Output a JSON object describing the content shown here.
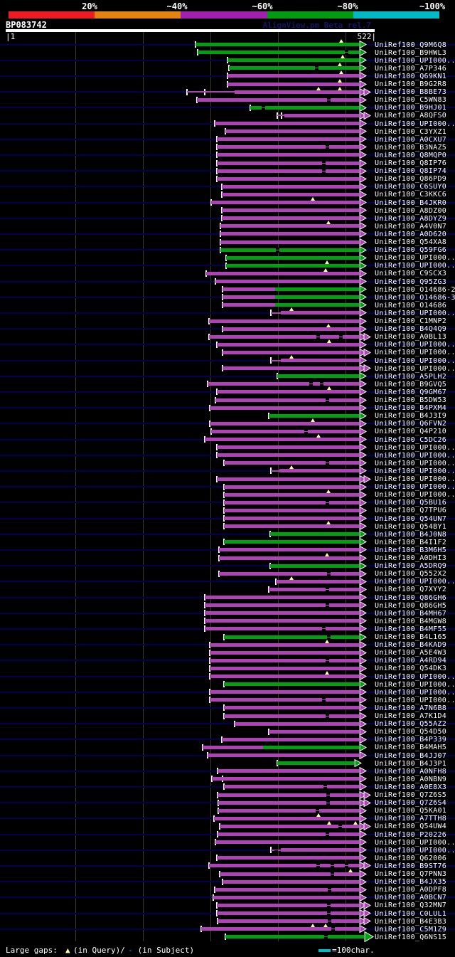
{
  "scale": {
    "labels": [
      "20%",
      "~40%",
      "~60%",
      "~80%",
      "~100%"
    ],
    "colors": [
      "#ed1b24",
      "#e5830f",
      "#a31fae",
      "#009d10",
      "#00bac6"
    ]
  },
  "header": {
    "title": "BP083742",
    "watermark": "AlignView.pm Beta rel.7"
  },
  "ruler": {
    "left_text": "|1",
    "right_text": "522|"
  },
  "footer": {
    "gaps_label": "Large gaps: ",
    "triangle": "▲",
    "gap_query": "(in Query)/",
    "dash": "-",
    "gap_subject": " (in Subject)",
    "scale_note": "=100char."
  },
  "chart_data": {
    "type": "alignment-overview",
    "query": "BP083742",
    "query_length": 522,
    "identity_bins": [
      "20%",
      "~40%",
      "~60%",
      "~80%",
      "~100%"
    ],
    "bar_colors": {
      "m": "#b042b8",
      "g": "#00a010"
    },
    "rows": [
      {
        "l": "UniRef100_Q9M6Q8",
        "c": "g",
        "s": 275,
        "t": [
          480
        ]
      },
      {
        "l": "UniRef100_B9HWL3",
        "c": "g",
        "s": 278,
        "d": [
          487
        ]
      },
      {
        "l": "UniRef100_UPI000..",
        "c": "g",
        "s": 320,
        "t": [
          482
        ]
      },
      {
        "l": "UniRef100_A7P346",
        "c": "g",
        "s": 322,
        "t": [
          478
        ],
        "d": [
          445
        ]
      },
      {
        "l": "UniRef100_Q69KN1",
        "c": "m",
        "s": 320,
        "t": [
          480
        ]
      },
      {
        "l": "UniRef100_B9G2R8",
        "c": "m",
        "s": 320,
        "t": [
          478
        ]
      },
      {
        "l": "UniRef100_B8BE73",
        "c": "m",
        "s": 263,
        "thin": 330,
        "t": [
          448,
          478
        ],
        "dbl": true,
        "cap2": 287
      },
      {
        "l": "UniRef100_C5WN83",
        "c": "m",
        "s": 277,
        "d": [
          462
        ]
      },
      {
        "l": "UniRef100_B9HJ01",
        "c": "g",
        "s": 352,
        "d": [
          370
        ]
      },
      {
        "l": "UniRef100_A8QFS0",
        "c": "m",
        "s": 390,
        "thin": 400,
        "dbl": true,
        "cap2": 395
      },
      {
        "l": "UniRef100_UPI000..",
        "c": "m",
        "s": 302
      },
      {
        "l": "UniRef100_C3YXZ1",
        "c": "m",
        "s": 317
      },
      {
        "l": "UniRef100_A0CXU7",
        "c": "m",
        "s": 305
      },
      {
        "l": "UniRef100_B3NAZ5",
        "c": "m",
        "s": 305,
        "d": [
          460
        ]
      },
      {
        "l": "UniRef100_Q8MQP0",
        "c": "m",
        "s": 305
      },
      {
        "l": "UniRef100_Q8IP76",
        "c": "m",
        "s": 305,
        "d": [
          455
        ]
      },
      {
        "l": "UniRef100_Q8IP74",
        "c": "m",
        "s": 305,
        "d": [
          455
        ]
      },
      {
        "l": "UniRef100_Q86PD9",
        "c": "m",
        "s": 305
      },
      {
        "l": "UniRef100_C6SUY0",
        "c": "m",
        "s": 312
      },
      {
        "l": "UniRef100_C3KKC6",
        "c": "m",
        "s": 312
      },
      {
        "l": "UniRef100_B4JKR0",
        "c": "m",
        "s": 297,
        "t": [
          440
        ]
      },
      {
        "l": "UniRef100_A8DZ00",
        "c": "m",
        "s": 312
      },
      {
        "l": "UniRef100_A8DYZ9",
        "c": "m",
        "s": 312
      },
      {
        "l": "UniRef100_A4V0N7",
        "c": "m",
        "s": 310,
        "t": [
          462
        ]
      },
      {
        "l": "UniRef100_A0D620",
        "c": "m",
        "s": 310
      },
      {
        "l": "UniRef100_Q54XA8",
        "c": "m",
        "s": 310
      },
      {
        "l": "UniRef100_Q59FG6",
        "c": "g",
        "s": 310,
        "d": [
          390
        ]
      },
      {
        "l": "UniRef100_UPI000..",
        "c": "g",
        "s": 318
      },
      {
        "l": "UniRef100_UPI000..",
        "c": "g",
        "s": 318,
        "t": [
          460
        ]
      },
      {
        "l": "UniRef100_C9SCX3",
        "c": "m",
        "s": 290,
        "t": [
          458
        ]
      },
      {
        "l": "UniRef100_Q95ZG3",
        "c": "m",
        "s": 303
      },
      {
        "l": "UniRef100_O14686-2",
        "c": "m",
        "s": 313,
        "g2": 387
      },
      {
        "l": "UniRef100_O14686-3",
        "c": "m",
        "s": 313,
        "g2": 387
      },
      {
        "l": "UniRef100_O14686",
        "c": "m",
        "s": 313,
        "g2": 387
      },
      {
        "l": "UniRef100_UPI000..",
        "c": "m",
        "s": 381,
        "thin": 395,
        "t": [
          410
        ]
      },
      {
        "l": "UniRef100_C1MNP2",
        "c": "m",
        "s": 294
      },
      {
        "l": "UniRef100_B4Q4Q9",
        "c": "m",
        "s": 313,
        "t": [
          462
        ]
      },
      {
        "l": "UniRef100_A0BL13",
        "c": "m",
        "s": 294,
        "d": [
          447,
          479
        ],
        "dbl": true
      },
      {
        "l": "UniRef100_UPI000..",
        "c": "m",
        "s": 305,
        "t": [
          463
        ]
      },
      {
        "l": "UniRef100_UPI000..",
        "c": "m",
        "s": 313,
        "dbl": true
      },
      {
        "l": "UniRef100_UPI000..",
        "c": "m",
        "s": 381,
        "thin": 395,
        "t": [
          410
        ]
      },
      {
        "l": "UniRef100_UPI000..",
        "c": "m",
        "s": 313,
        "dbl": true
      },
      {
        "l": "UniRef100_A5PLH2",
        "c": "g",
        "s": 390
      },
      {
        "l": "UniRef100_B9GVQ5",
        "c": "m",
        "s": 292,
        "d": [
          437,
          452
        ]
      },
      {
        "l": "UniRef100_Q9GM67",
        "c": "m",
        "s": 305,
        "t": [
          463
        ]
      },
      {
        "l": "UniRef100_B5DW53",
        "c": "m",
        "s": 303,
        "d": [
          460
        ]
      },
      {
        "l": "UniRef100_B4PXM4",
        "c": "m",
        "s": 295
      },
      {
        "l": "UniRef100_B4J3I9",
        "c": "g",
        "s": 378
      },
      {
        "l": "UniRef100_Q6FVN2",
        "c": "m",
        "s": 295,
        "t": [
          440
        ]
      },
      {
        "l": "UniRef100_Q4P210",
        "c": "m",
        "s": 297,
        "d": [
          430
        ]
      },
      {
        "l": "UniRef100_C5DC26",
        "c": "m",
        "s": 288,
        "t": [
          448
        ]
      },
      {
        "l": "UniRef100_UPI000..",
        "c": "m",
        "s": 305
      },
      {
        "l": "UniRef100_UPI000..",
        "c": "m",
        "s": 305
      },
      {
        "l": "UniRef100_UPI000..",
        "c": "m",
        "s": 315,
        "d": [
          460
        ]
      },
      {
        "l": "UniRef100_UPI000..",
        "c": "m",
        "s": 381,
        "thin": 393,
        "t": [
          410
        ]
      },
      {
        "l": "UniRef100_UPI000..",
        "c": "m",
        "s": 305,
        "dbl": true
      },
      {
        "l": "UniRef100_UPI000..",
        "c": "m",
        "s": 315
      },
      {
        "l": "UniRef100_UPI000..",
        "c": "m",
        "s": 315,
        "t": [
          462
        ]
      },
      {
        "l": "UniRef100_Q5BU16",
        "c": "m",
        "s": 315,
        "d": [
          460
        ]
      },
      {
        "l": "UniRef100_Q7TPU6",
        "c": "m",
        "s": 315
      },
      {
        "l": "UniRef100_Q54UN7",
        "c": "m",
        "s": 315
      },
      {
        "l": "UniRef100_Q54BY1",
        "c": "m",
        "s": 315,
        "t": [
          462
        ]
      },
      {
        "l": "UniRef100_B4J0N8",
        "c": "g",
        "s": 380
      },
      {
        "l": "UniRef100_B4I1F2",
        "c": "g",
        "s": 315
      },
      {
        "l": "UniRef100_B3M6H5",
        "c": "m",
        "s": 308
      },
      {
        "l": "UniRef100_A0DHI3",
        "c": "m",
        "s": 308,
        "t": [
          460
        ]
      },
      {
        "l": "UniRef100_A5DRQ9",
        "c": "g",
        "s": 380
      },
      {
        "l": "UniRef100_Q552X2",
        "c": "m",
        "s": 308,
        "d": [
          462
        ]
      },
      {
        "l": "UniRef100_UPI000..",
        "c": "m",
        "s": 388,
        "t": [
          410
        ]
      },
      {
        "l": "UniRef100_Q7XYY2",
        "c": "m",
        "s": 378,
        "d": [
          460
        ]
      },
      {
        "l": "UniRef100_Q86GH6",
        "c": "m",
        "s": 288
      },
      {
        "l": "UniRef100_Q86GH5",
        "c": "m",
        "s": 288,
        "d": [
          460
        ]
      },
      {
        "l": "UniRef100_B4MH67",
        "c": "m",
        "s": 288
      },
      {
        "l": "UniRef100_B4MGW8",
        "c": "m",
        "s": 288
      },
      {
        "l": "UniRef100_B4MF55",
        "c": "m",
        "s": 288,
        "d": [
          455
        ]
      },
      {
        "l": "UniRef100_B4L165",
        "c": "g",
        "s": 315,
        "d": [
          462
        ]
      },
      {
        "l": "UniRef100_B4KAD9",
        "c": "m",
        "s": 295,
        "t": [
          460
        ]
      },
      {
        "l": "UniRef100_A5E4W3",
        "c": "m",
        "s": 295
      },
      {
        "l": "UniRef100_A4RD94",
        "c": "m",
        "s": 295,
        "d": [
          460
        ]
      },
      {
        "l": "UniRef100_Q54DK3",
        "c": "m",
        "s": 295
      },
      {
        "l": "UniRef100_UPI000..",
        "c": "m",
        "s": 295,
        "t": [
          460
        ]
      },
      {
        "l": "UniRef100_UPI000..",
        "c": "g",
        "s": 315
      },
      {
        "l": "UniRef100_UPI000..",
        "c": "m",
        "s": 295
      },
      {
        "l": "UniRef100_UPI000..",
        "c": "m",
        "s": 295,
        "d": [
          455
        ]
      },
      {
        "l": "UniRef100_A7N6B8",
        "c": "m",
        "s": 315
      },
      {
        "l": "UniRef100_A7K1D4",
        "c": "m",
        "s": 315,
        "d": [
          460
        ]
      },
      {
        "l": "UniRef100_Q55AZ2",
        "c": "m",
        "s": 330
      },
      {
        "l": "UniRef100_Q54D50",
        "c": "m",
        "s": 378
      },
      {
        "l": "UniRef100_B4P339",
        "c": "m",
        "s": 312
      },
      {
        "l": "UniRef100_B4MAH5",
        "c": "m",
        "s": 285,
        "g2": 370
      },
      {
        "l": "UniRef100_B4JJ07",
        "c": "m",
        "s": 292
      },
      {
        "l": "UniRef100_B4J3P1",
        "c": "g",
        "s": 390,
        "e": 498
      },
      {
        "l": "UniRef100_A0NFH8",
        "c": "m",
        "s": 306
      },
      {
        "l": "UniRef100_A0NBN9",
        "c": "m",
        "s": 298,
        "cap2": 312
      },
      {
        "l": "UniRef100_A0E8X3",
        "c": "m",
        "s": 315,
        "d": [
          457
        ]
      },
      {
        "l": "UniRef100_Q7Z6S5",
        "c": "m",
        "s": 306,
        "d": [
          461
        ],
        "dbl": true
      },
      {
        "l": "UniRef100_Q7Z6S4",
        "c": "m",
        "s": 307,
        "d": [
          461
        ],
        "dbl": true
      },
      {
        "l": "UniRef100_Q5KA01",
        "c": "m",
        "s": 307,
        "d": [
          446
        ]
      },
      {
        "l": "UniRef100_A7TTH8",
        "c": "m",
        "s": 301,
        "t": [
          448
        ]
      },
      {
        "l": "UniRef100_Q54UW4",
        "c": "m",
        "s": 309,
        "d": [
          478
        ],
        "t": [
          463,
          500
        ],
        "dbl": true
      },
      {
        "l": "UniRef100_P20226",
        "c": "m",
        "s": 306,
        "d": [
          460
        ]
      },
      {
        "l": "UniRef100_UPI000..",
        "c": "m",
        "s": 303
      },
      {
        "l": "UniRef100_UPI000..",
        "c": "m",
        "s": 381,
        "thin": 395,
        "d": [
          388
        ]
      },
      {
        "l": "UniRef100_Q62006",
        "c": "m",
        "s": 305
      },
      {
        "l": "UniRef100_B9ST76",
        "c": "m",
        "s": 294,
        "d": [
          447,
          467,
          487
        ],
        "dbl": true
      },
      {
        "l": "UniRef100_Q7PNN3",
        "c": "m",
        "s": 309,
        "d": [
          467
        ],
        "t": [
          493
        ]
      },
      {
        "l": "UniRef100_B4JX35",
        "c": "m",
        "s": 313
      },
      {
        "l": "UniRef100_A0DPF8",
        "c": "m",
        "s": 302,
        "d": [
          463
        ]
      },
      {
        "l": "UniRef100_A0BCN7",
        "c": "m",
        "s": 300
      },
      {
        "l": "UniRef100_Q32MN7",
        "c": "m",
        "s": 305,
        "d": [
          462
        ],
        "dbl": true
      },
      {
        "l": "UniRef100_C0LUL1",
        "c": "m",
        "s": 305,
        "d": [
          462
        ],
        "dbl": true
      },
      {
        "l": "UniRef100_B4E3B3",
        "c": "m",
        "s": 306,
        "d": [
          463
        ],
        "dbl": true
      },
      {
        "l": "UniRef100_C5M1Z9",
        "c": "m",
        "s": 283,
        "t": [
          440,
          458
        ],
        "d": [
          468
        ]
      },
      {
        "l": "UniRef100_Q6NS15",
        "c": "g",
        "s": 317,
        "d": [
          458
        ],
        "e": 512,
        "big": true
      }
    ]
  }
}
